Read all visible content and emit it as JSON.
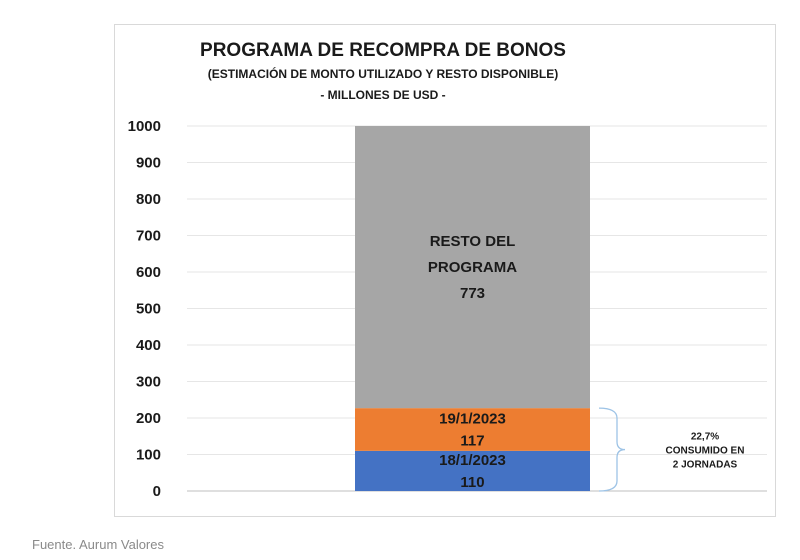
{
  "chart_data": {
    "type": "bar",
    "stacked": true,
    "title": "PROGRAMA DE RECOMPRA DE BONOS",
    "subtitle": "(ESTIMACIÓN DE MONTO UTILIZADO Y RESTO DISPONIBLE)",
    "units": "- MILLONES DE USD -",
    "ylim": [
      0,
      1000
    ],
    "yticks": [
      0,
      100,
      200,
      300,
      400,
      500,
      600,
      700,
      800,
      900,
      1000
    ],
    "grid": true,
    "segments": [
      {
        "name": "18/1/2023",
        "value": 110,
        "color": "#4472c4"
      },
      {
        "name": "19/1/2023",
        "value": 117,
        "color": "#ed7d31"
      },
      {
        "name": "RESTO DEL PROGRAMA",
        "label_lines": [
          "RESTO DEL",
          "PROGRAMA"
        ],
        "value": 773,
        "color": "#a6a6a6"
      }
    ],
    "annotation": {
      "lines": [
        "22,7%",
        "CONSUMIDO EN",
        "2 JORNADAS"
      ]
    }
  },
  "source": "Fuente. Aurum Valores"
}
